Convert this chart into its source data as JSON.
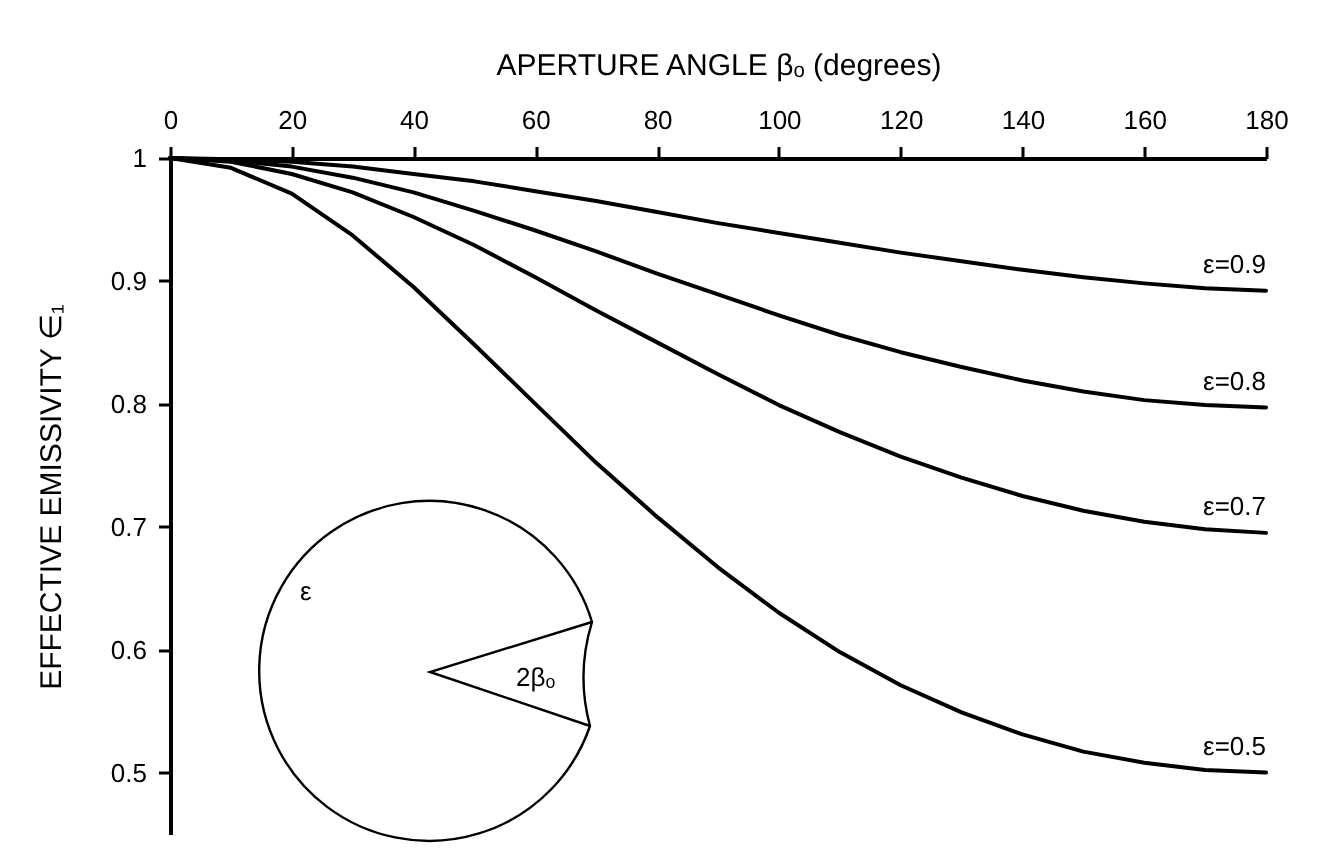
{
  "chart_data": {
    "type": "line",
    "xlabel": "APERTURE ANGLE βₒ (degrees)",
    "ylabel": "EFFECTIVE EMISSIVITY ∈₁",
    "x": [
      0,
      10,
      20,
      30,
      40,
      50,
      60,
      70,
      80,
      90,
      100,
      110,
      120,
      130,
      140,
      150,
      160,
      170,
      180
    ],
    "series": [
      {
        "name": "ε=0.9",
        "color": "#000000",
        "values": [
          1,
          0.999,
          0.997,
          0.993,
          0.987,
          0.981,
          0.973,
          0.965,
          0.956,
          0.947,
          0.939,
          0.931,
          0.923,
          0.916,
          0.909,
          0.903,
          0.898,
          0.894,
          0.892
        ]
      },
      {
        "name": "ε=0.8",
        "color": "#000000",
        "values": [
          1,
          0.998,
          0.993,
          0.984,
          0.972,
          0.957,
          0.941,
          0.924,
          0.906,
          0.889,
          0.872,
          0.856,
          0.842,
          0.83,
          0.819,
          0.81,
          0.803,
          0.799,
          0.797
        ]
      },
      {
        "name": "ε=0.7",
        "color": "#000000",
        "values": [
          1,
          0.997,
          0.987,
          0.972,
          0.952,
          0.929,
          0.903,
          0.876,
          0.85,
          0.824,
          0.799,
          0.777,
          0.757,
          0.74,
          0.725,
          0.713,
          0.704,
          0.698,
          0.695
        ]
      },
      {
        "name": "ε=0.5",
        "color": "#000000",
        "values": [
          1,
          0.992,
          0.971,
          0.937,
          0.895,
          0.848,
          0.8,
          0.752,
          0.708,
          0.667,
          0.63,
          0.598,
          0.571,
          0.549,
          0.531,
          0.517,
          0.508,
          0.502,
          0.5
        ]
      }
    ],
    "xlim": [
      0,
      180
    ],
    "xticks": [
      0,
      20,
      40,
      60,
      80,
      100,
      120,
      140,
      160,
      180
    ],
    "ylim": [
      0.45,
      1
    ],
    "yticks": [
      0.5,
      0.6,
      0.7,
      0.8,
      0.9,
      1
    ],
    "marker": "none",
    "line_style": "solid",
    "annotations": [
      "ε",
      "2βₒ"
    ]
  }
}
